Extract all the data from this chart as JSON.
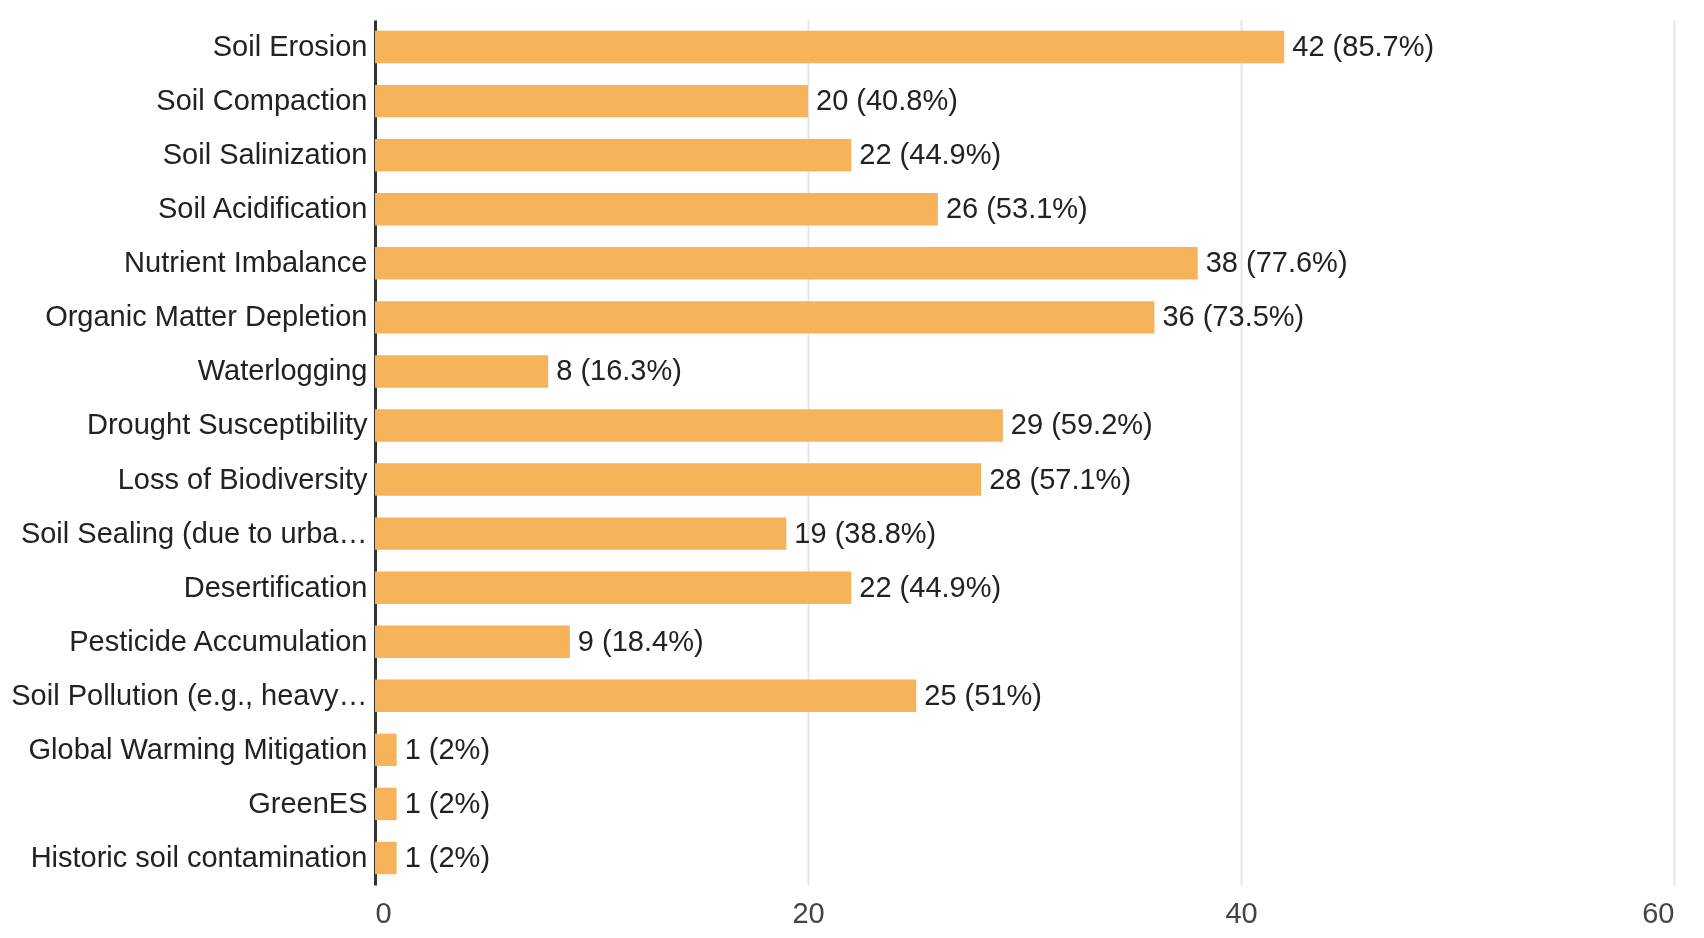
{
  "chart_data": {
    "type": "bar",
    "orientation": "horizontal",
    "categories": [
      "Soil Erosion",
      "Soil Compaction",
      "Soil Salinization",
      "Soil Acidification",
      "Nutrient Imbalance",
      "Organic Matter Depletion",
      "Waterlogging",
      "Drought Susceptibility",
      "Loss of Biodiversity",
      "Soil Sealing (due to urba…",
      "Desertification",
      "Pesticide Accumulation",
      "Soil Pollution (e.g., heavy…",
      "Global Warming Mitigation",
      "GreenES",
      "Historic soil contamination"
    ],
    "values": [
      42,
      20,
      22,
      26,
      38,
      36,
      8,
      29,
      28,
      19,
      22,
      9,
      25,
      1,
      1,
      1
    ],
    "value_labels": [
      "42 (85.7%)",
      "20 (40.8%)",
      "22 (44.9%)",
      "26 (53.1%)",
      "38 (77.6%)",
      "36 (73.5%)",
      "8 (16.3%)",
      "29 (59.2%)",
      "28 (57.1%)",
      "19 (38.8%)",
      "22 (44.9%)",
      "9 (18.4%)",
      "25 (51%)",
      "1 (2%)",
      "1 (2%)",
      "1 (2%)"
    ],
    "color": "#f6b35a",
    "xlim": [
      0,
      60
    ],
    "xticks": [
      0,
      20,
      40,
      60
    ],
    "grid": "x"
  }
}
